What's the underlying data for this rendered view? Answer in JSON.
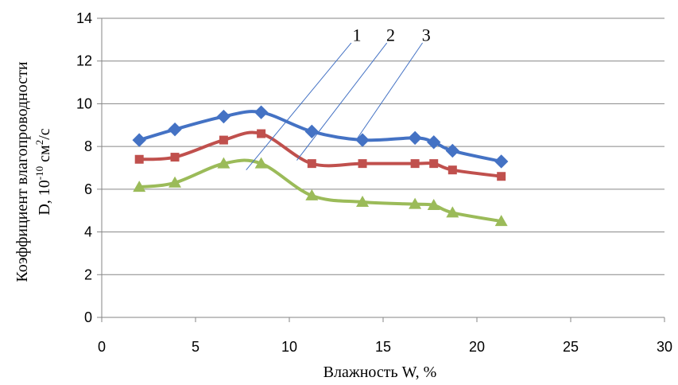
{
  "chart_data": {
    "type": "line",
    "xlabel": "Влажность W, %",
    "ylabel_line1": "Коэффициент влагопроводности",
    "ylabel_line2_prefix": "D, 10",
    "ylabel_line2_exp": "-10",
    "ylabel_line2_unit": " см",
    "ylabel_line2_unit_exp": "2",
    "ylabel_line2_suffix": "/с",
    "xlim": [
      0,
      30
    ],
    "ylim": [
      0,
      14
    ],
    "x_ticks": [
      0,
      5,
      10,
      15,
      20,
      25,
      30
    ],
    "y_ticks": [
      0,
      2,
      4,
      6,
      8,
      10,
      12,
      14
    ],
    "grid": true,
    "series": [
      {
        "label": "1",
        "color": "#4472C4",
        "marker": "diamond",
        "x": [
          2.0,
          3.9,
          6.5,
          8.5,
          11.2,
          13.9,
          16.7,
          17.7,
          18.7,
          21.3
        ],
        "y": [
          8.3,
          8.8,
          9.4,
          9.6,
          8.7,
          8.3,
          8.4,
          8.2,
          7.8,
          7.3
        ]
      },
      {
        "label": "2",
        "color": "#C0504D",
        "marker": "square",
        "x": [
          2.0,
          3.9,
          6.5,
          8.5,
          11.2,
          13.9,
          16.7,
          17.7,
          18.7,
          21.3
        ],
        "y": [
          7.4,
          7.5,
          8.3,
          8.6,
          7.2,
          7.2,
          7.2,
          7.2,
          6.9,
          6.6
        ]
      },
      {
        "label": "3",
        "color": "#9BBB59",
        "marker": "triangle",
        "x": [
          2.0,
          3.9,
          6.5,
          8.5,
          11.2,
          13.9,
          16.7,
          17.7,
          18.7,
          21.3
        ],
        "y": [
          6.1,
          6.3,
          7.2,
          7.2,
          5.7,
          5.4,
          5.3,
          5.25,
          4.9,
          4.5
        ]
      }
    ],
    "annotations": [
      {
        "text": "1",
        "label_at": [
          13.6,
          13.2
        ],
        "line_from": [
          13.3,
          12.85
        ],
        "line_to": [
          7.7,
          6.9
        ],
        "color": "#4472C4"
      },
      {
        "text": "2",
        "label_at": [
          15.4,
          13.2
        ],
        "line_from": [
          15.2,
          12.85
        ],
        "line_to": [
          10.4,
          7.35
        ],
        "color": "#4472C4"
      },
      {
        "text": "3",
        "label_at": [
          17.3,
          13.2
        ],
        "line_from": [
          17.1,
          12.85
        ],
        "line_to": [
          13.6,
          8.35
        ],
        "color": "#4472C4"
      }
    ]
  }
}
